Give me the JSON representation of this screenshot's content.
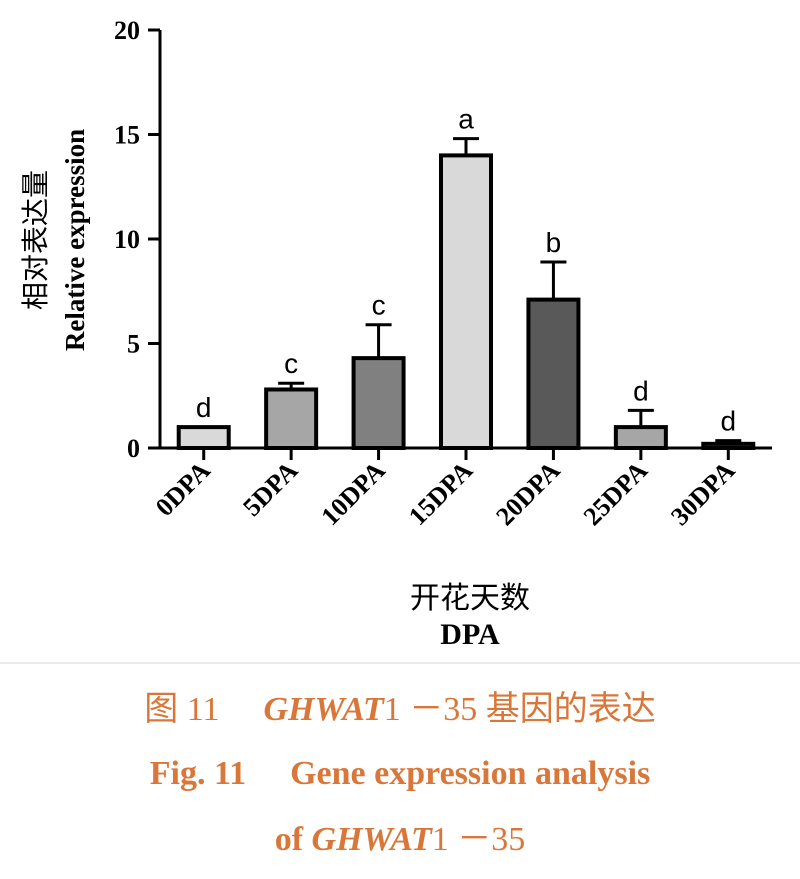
{
  "chart_data": {
    "type": "bar",
    "categories": [
      "0DPA",
      "5DPA",
      "10DPA",
      "15DPA",
      "20DPA",
      "25DPA",
      "30DPA"
    ],
    "values": [
      1.0,
      2.8,
      4.3,
      14.0,
      7.1,
      1.0,
      0.2
    ],
    "errors": [
      0.0,
      0.3,
      1.6,
      0.8,
      1.8,
      0.8,
      0.15
    ],
    "significance_letters": [
      "d",
      "c",
      "c",
      "a",
      "b",
      "d",
      "d"
    ],
    "bar_colors": [
      "#d9d9d9",
      "#a6a6a6",
      "#808080",
      "#d9d9d9",
      "#595959",
      "#a6a6a6",
      "#808080"
    ],
    "ylabel_cn": "相对表达量",
    "ylabel": "Relative expression",
    "xlabel_cn": "开花天数",
    "xlabel": "DPA",
    "ylim": [
      0,
      20
    ],
    "yticks": [
      0,
      5,
      10,
      15,
      20
    ],
    "grid": false
  },
  "caption": {
    "cn_label": "图 11",
    "cn_gene": "GHWAT",
    "cn_rest": "1 －35 基因的表达",
    "en_label": "Fig. 11",
    "en_text": "Gene expression analysis",
    "en_of": "of ",
    "en_gene": "GHWAT",
    "en_rest": "1 －35",
    "color": "#d9773a"
  }
}
